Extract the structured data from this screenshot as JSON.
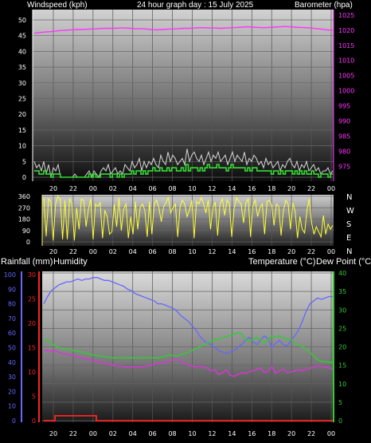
{
  "top_title_left": "Windspeed (kph)",
  "top_title_center": "24 hour graph day : 15 July 2025",
  "top_title_right": "Barometer (hpa)",
  "bottom_title_left_1": "Rainfall (mm)",
  "bottom_title_left_2": "Humidity",
  "bottom_title_right_1": "Temperature (°C)",
  "bottom_title_right_2": "Dew Point (°C)",
  "direction_labels": [
    "N",
    "W",
    "S",
    "E",
    "N"
  ],
  "colors": {
    "windspeed": "#d8d8d8",
    "wind_avg": "#33dd33",
    "barometer": "#ff33ff",
    "direction": "#ffff33",
    "humidity": "#6666ff",
    "rainfall": "#ff2222",
    "temperature": "#33cc33",
    "dewpoint": "#dd33dd"
  },
  "chart_data": [
    {
      "type": "line",
      "name": "wind-barometer",
      "x_ticks": [
        "20",
        "22",
        "00",
        "02",
        "04",
        "06",
        "08",
        "10",
        "12",
        "14",
        "16",
        "18",
        "20",
        "22",
        "00"
      ],
      "yleft_ticks": [
        "0",
        "5",
        "10",
        "15",
        "20",
        "25",
        "30",
        "35",
        "40",
        "45",
        "50"
      ],
      "yleft_lim": [
        0,
        50
      ],
      "yright_ticks": [
        "975",
        "980",
        "985",
        "990",
        "995",
        "1000",
        "1005",
        "1010",
        "1015",
        "1020",
        "1025"
      ],
      "yright_lim": [
        972,
        1026
      ],
      "series": [
        {
          "key": "gust",
          "axis": "left",
          "values": [
            5,
            3,
            4,
            2,
            5,
            1,
            4,
            0,
            3,
            2,
            4,
            0,
            0,
            0,
            0,
            0,
            0,
            1,
            0,
            0,
            0,
            0,
            1,
            2,
            0,
            2,
            1,
            0,
            2,
            3,
            2,
            4,
            1,
            2,
            3,
            1,
            2,
            1,
            4,
            3,
            2,
            5,
            3,
            4,
            6,
            2,
            5,
            3,
            5,
            4,
            6,
            4,
            3,
            7,
            5,
            4,
            8,
            5,
            7,
            6,
            4,
            5,
            6,
            4,
            9,
            5,
            7,
            8,
            6,
            5,
            7,
            4,
            6,
            8,
            5,
            7,
            6,
            8,
            5,
            6,
            7,
            4,
            6,
            8,
            5,
            7,
            6,
            5,
            8,
            4,
            6,
            5,
            7,
            6,
            4,
            5,
            3,
            6,
            4,
            5,
            3,
            4,
            5,
            2,
            4,
            3,
            5,
            6,
            4,
            3,
            5,
            2,
            4,
            3,
            5,
            2,
            3,
            4,
            2,
            3,
            1,
            2,
            2,
            3,
            1,
            2
          ]
        },
        {
          "key": "avg",
          "axis": "left",
          "values": [
            2,
            2,
            1,
            1,
            2,
            1,
            1,
            0,
            1,
            1,
            1,
            0,
            0,
            0,
            0,
            0,
            0,
            0,
            0,
            0,
            0,
            0,
            0,
            1,
            0,
            1,
            0,
            0,
            1,
            1,
            1,
            1,
            0,
            1,
            1,
            0,
            1,
            0,
            1,
            1,
            1,
            2,
            1,
            2,
            2,
            1,
            2,
            1,
            2,
            2,
            3,
            2,
            2,
            3,
            2,
            2,
            3,
            2,
            3,
            3,
            2,
            2,
            3,
            2,
            4,
            2,
            3,
            3,
            3,
            2,
            3,
            2,
            3,
            4,
            3,
            3,
            3,
            4,
            3,
            3,
            3,
            2,
            3,
            4,
            3,
            3,
            3,
            3,
            3,
            2,
            3,
            2,
            3,
            3,
            2,
            2,
            2,
            2,
            2,
            2,
            1,
            2,
            2,
            1,
            2,
            1,
            2,
            2,
            2,
            1,
            2,
            1,
            2,
            1,
            2,
            1,
            1,
            2,
            1,
            1,
            0,
            1,
            1,
            1,
            0,
            1
          ]
        },
        {
          "key": "barometer",
          "axis": "right",
          "values": [
            1019.0,
            1019.2,
            1019.4,
            1019.5,
            1019.7,
            1019.9,
            1020.0,
            1020.1,
            1020.2,
            1020.2,
            1020.3,
            1020.4,
            1020.5,
            1020.6,
            1020.6,
            1020.6,
            1020.7,
            1020.7,
            1020.6,
            1020.5,
            1020.5,
            1020.4,
            1020.2,
            1020.1,
            1020.2,
            1020.3,
            1020.4,
            1020.5,
            1020.6,
            1020.6,
            1020.7,
            1020.8,
            1020.8,
            1020.7,
            1020.7,
            1020.6,
            1020.7,
            1020.8,
            1020.9,
            1021.0,
            1021.1,
            1021.0,
            1020.9,
            1020.8,
            1020.9,
            1021.0,
            1021.1,
            1021.2,
            1021.1,
            1021.0,
            1020.9,
            1020.8,
            1020.7,
            1020.5,
            1020.3,
            1020.1,
            1020.0
          ]
        }
      ]
    },
    {
      "type": "line",
      "name": "wind-direction",
      "x_ticks": [
        "20",
        "22",
        "00",
        "02",
        "04",
        "06",
        "08",
        "10",
        "12",
        "14",
        "16",
        "18",
        "20",
        "22",
        "00"
      ],
      "y_ticks": [
        "0",
        "90",
        "180",
        "270",
        "360"
      ],
      "ylim": [
        0,
        360
      ],
      "series": [
        {
          "key": "direction",
          "values": [
            350,
            45,
            340,
            320,
            10,
            300,
            360,
            340,
            20,
            330,
            20,
            340,
            310,
            10,
            270,
            100,
            340,
            330,
            120,
            260,
            340,
            20,
            300,
            280,
            310,
            30,
            250,
            200,
            60,
            80,
            300,
            120,
            350,
            90,
            260,
            300,
            30,
            200,
            60,
            320,
            100,
            270,
            300,
            250,
            40,
            320,
            60,
            300,
            330,
            270,
            160,
            280,
            310,
            350,
            230,
            270,
            300,
            40,
            280,
            330,
            300,
            200,
            250,
            330,
            30,
            320,
            300,
            350,
            300,
            230,
            330,
            100,
            280,
            310,
            50,
            300,
            340,
            210,
            330,
            300,
            40,
            260,
            350,
            320,
            300,
            150,
            310,
            340,
            40,
            290,
            330,
            200,
            270,
            300,
            60,
            320,
            330,
            290,
            130,
            300,
            280,
            50,
            250,
            330,
            300,
            100,
            310,
            240,
            30,
            200,
            100,
            70,
            250,
            340,
            150,
            60,
            120,
            80,
            40,
            210,
            60,
            140,
            100,
            130
          ]
        }
      ]
    },
    {
      "type": "line",
      "name": "humidity-temperature",
      "x_ticks": [
        "20",
        "22",
        "00",
        "02",
        "04",
        "06",
        "08",
        "10",
        "12",
        "14",
        "16",
        "18",
        "20",
        "22",
        "00"
      ],
      "y_ticks_humidity": [
        "0",
        "10",
        "20",
        "30",
        "40",
        "50",
        "60",
        "70",
        "80",
        "90",
        "100"
      ],
      "y_ticks_rain": [
        "0",
        "5",
        "10",
        "15",
        "20",
        "25",
        "30"
      ],
      "y_ticks_temp": [
        "0",
        "5",
        "10",
        "15",
        "20",
        "25",
        "30",
        "35",
        "40"
      ],
      "humidity_lim": [
        0,
        100
      ],
      "rain_lim": [
        0,
        30
      ],
      "temp_lim": [
        0,
        40
      ],
      "series": [
        {
          "key": "humidity",
          "axis": "humidity",
          "values": [
            80,
            85,
            89,
            91,
            93,
            94,
            95,
            95,
            96,
            97,
            96,
            97,
            97,
            98,
            98,
            97,
            96,
            96,
            95,
            94,
            93,
            92,
            90,
            89,
            87,
            86,
            85,
            84,
            83,
            82,
            80,
            80,
            79,
            78,
            77,
            75,
            72,
            70,
            68,
            65,
            62,
            58,
            55,
            53,
            52,
            50,
            48,
            47,
            46,
            47,
            48,
            50,
            52,
            55,
            57,
            54,
            52,
            55,
            58,
            56,
            50,
            53,
            55,
            52,
            51,
            55,
            58,
            62,
            68,
            75,
            80,
            82,
            84,
            83,
            84,
            85,
            85
          ]
        },
        {
          "key": "rainfall",
          "axis": "rain",
          "values": [
            0,
            0,
            0,
            1,
            1,
            1,
            1,
            1,
            1,
            1,
            1,
            1,
            1,
            1,
            0,
            0,
            0,
            0,
            0,
            0,
            0,
            0,
            0,
            0,
            0,
            0,
            0,
            0,
            0,
            0,
            0,
            0,
            0,
            0,
            0,
            0,
            0,
            0,
            0,
            0,
            0,
            0,
            0,
            0,
            0,
            0,
            0,
            0,
            0,
            0,
            0,
            0,
            0,
            0,
            0,
            0,
            0,
            0,
            0,
            0,
            0,
            0,
            0,
            0,
            0,
            0,
            0,
            0,
            0,
            0,
            0,
            0,
            0,
            0,
            0,
            0,
            0
          ]
        },
        {
          "key": "temperature",
          "axis": "temp",
          "values": [
            21.5,
            22.0,
            21.0,
            20.2,
            19.8,
            19.5,
            19.3,
            19.2,
            19.0,
            18.8,
            18.5,
            18.2,
            18.0,
            17.8,
            17.6,
            17.5,
            17.3,
            17.2,
            17.0,
            17.0,
            17.0,
            17.0,
            17.0,
            17.0,
            17.0,
            17.0,
            17.0,
            17.0,
            17.0,
            17.0,
            17.0,
            17.2,
            17.5,
            17.8,
            17.6,
            17.5,
            17.8,
            18.2,
            18.5,
            19.0,
            19.5,
            20.0,
            20.5,
            21.0,
            21.5,
            22.0,
            22.0,
            22.5,
            22.8,
            23.0,
            23.5,
            23.8,
            23.5,
            22.0,
            21.5,
            22.0,
            22.5,
            22.0,
            21.0,
            22.0,
            23.0,
            22.5,
            23.0,
            22.5,
            22.0,
            22.0,
            21.0,
            20.5,
            20.0,
            19.5,
            18.5,
            17.5,
            16.5,
            16.0,
            16.0,
            15.8,
            15.8
          ]
        },
        {
          "key": "dewpoint",
          "axis": "temp",
          "values": [
            19.0,
            19.0,
            18.8,
            19.0,
            18.5,
            18.2,
            18.0,
            17.8,
            17.5,
            17.2,
            17.0,
            16.8,
            16.5,
            16.2,
            16.0,
            15.8,
            15.5,
            15.3,
            15.0,
            14.8,
            14.8,
            14.6,
            14.5,
            14.5,
            14.5,
            14.5,
            14.6,
            14.8,
            15.0,
            15.2,
            15.5,
            15.6,
            15.8,
            16.0,
            16.5,
            16.8,
            16.0,
            15.5,
            15.0,
            14.8,
            14.6,
            14.8,
            14.5,
            14.3,
            13.5,
            13.8,
            12.5,
            13.0,
            13.8,
            12.3,
            12.0,
            12.5,
            13.0,
            12.8,
            13.2,
            13.5,
            14.0,
            14.2,
            13.0,
            13.5,
            14.5,
            12.8,
            13.5,
            14.0,
            13.0,
            13.2,
            13.5,
            13.8,
            13.5,
            14.0,
            14.2,
            14.5,
            14.8,
            14.8,
            14.5,
            14.3,
            14.0
          ]
        }
      ]
    }
  ]
}
